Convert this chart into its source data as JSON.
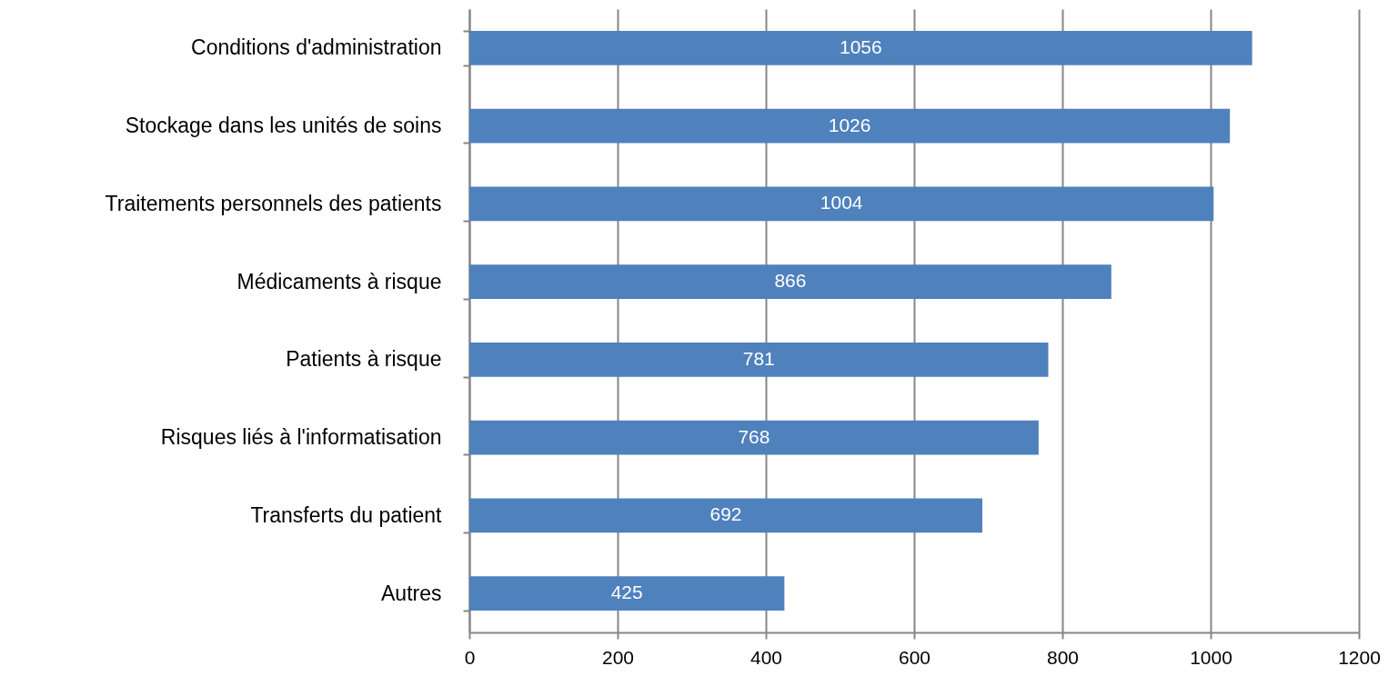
{
  "chart_data": {
    "type": "bar",
    "orientation": "horizontal",
    "categories": [
      "Conditions d'administration",
      "Stockage dans les unités de soins",
      "Traitements personnels des patients",
      "Médicaments à risque",
      "Patients à risque",
      "Risques liés à l'informatisation",
      "Transferts du patient",
      "Autres"
    ],
    "values": [
      1056,
      1026,
      1004,
      866,
      781,
      768,
      692,
      425
    ],
    "color": "#4f81bd",
    "xlim": [
      0,
      1200
    ],
    "xticks": [
      0,
      200,
      400,
      600,
      800,
      1000,
      1200
    ],
    "grid": "x",
    "data_labels": true
  }
}
